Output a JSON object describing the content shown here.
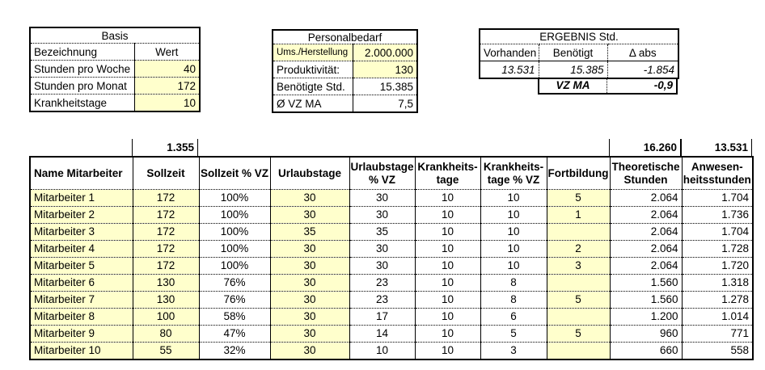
{
  "colors": {
    "highlight": "#ffffcc",
    "border": "#000000",
    "background": "#ffffff"
  },
  "basis": {
    "title": "Basis",
    "columns": [
      "Bezeichnung",
      "Wert"
    ],
    "rows": [
      {
        "label": "Stunden pro Woche",
        "value": "40"
      },
      {
        "label": "Stunden pro Monat",
        "value": "172"
      },
      {
        "label": "Krankheitstage",
        "value": "10"
      }
    ]
  },
  "personalbedarf": {
    "title": "Personalbedarf",
    "rows": [
      {
        "label": "Ums./Herstellung",
        "value": "2.000.000"
      },
      {
        "label": "Produktivität:",
        "value": "130"
      },
      {
        "label": "Benötigte Std.",
        "value": "15.385"
      },
      {
        "label": "Ø VZ MA",
        "value": "7,5"
      }
    ]
  },
  "ergebnis": {
    "title": "ERGEBNIS Std.",
    "columns": [
      "Vorhanden",
      "Benötigt",
      "Δ abs"
    ],
    "values": [
      "13.531",
      "15.385",
      "-1.854"
    ],
    "footer": {
      "label": "VZ MA",
      "value": "-0,9"
    }
  },
  "mitarbeiter_table": {
    "totals": {
      "sollzeit": "1.355",
      "theoretische_stunden": "16.260",
      "anwesenheitsstunden": "13.531"
    },
    "headers": [
      "Name Mitarbeiter",
      "Sollzeit",
      "Sollzeit % VZ",
      "Urlaubstage",
      "Urlaubstage\n% VZ",
      "Krankheits-\ntage",
      "Krankheits-\ntage % VZ",
      "Fortbildung",
      "Theoretische\nStunden",
      "Anwesen-\nheitsstunden"
    ],
    "rows": [
      [
        "Mitarbeiter 1",
        "172",
        "100%",
        "30",
        "30",
        "10",
        "10",
        "5",
        "2.064",
        "1.704"
      ],
      [
        "Mitarbeiter 2",
        "172",
        "100%",
        "30",
        "30",
        "10",
        "10",
        "1",
        "2.064",
        "1.736"
      ],
      [
        "Mitarbeiter 3",
        "172",
        "100%",
        "35",
        "35",
        "10",
        "10",
        "",
        "2.064",
        "1.704"
      ],
      [
        "Mitarbeiter 4",
        "172",
        "100%",
        "30",
        "30",
        "10",
        "10",
        "2",
        "2.064",
        "1.728"
      ],
      [
        "Mitarbeiter 5",
        "172",
        "100%",
        "30",
        "30",
        "10",
        "10",
        "3",
        "2.064",
        "1.720"
      ],
      [
        "Mitarbeiter 6",
        "130",
        "76%",
        "30",
        "23",
        "10",
        "8",
        "",
        "1.560",
        "1.318"
      ],
      [
        "Mitarbeiter 7",
        "130",
        "76%",
        "30",
        "23",
        "10",
        "8",
        "5",
        "1.560",
        "1.278"
      ],
      [
        "Mitarbeiter 8",
        "100",
        "58%",
        "30",
        "17",
        "10",
        "6",
        "",
        "1.200",
        "1.014"
      ],
      [
        "Mitarbeiter 9",
        "80",
        "47%",
        "30",
        "14",
        "10",
        "5",
        "5",
        "960",
        "771"
      ],
      [
        "Mitarbeiter 10",
        "55",
        "32%",
        "30",
        "10",
        "10",
        "3",
        "",
        "660",
        "558"
      ]
    ]
  }
}
